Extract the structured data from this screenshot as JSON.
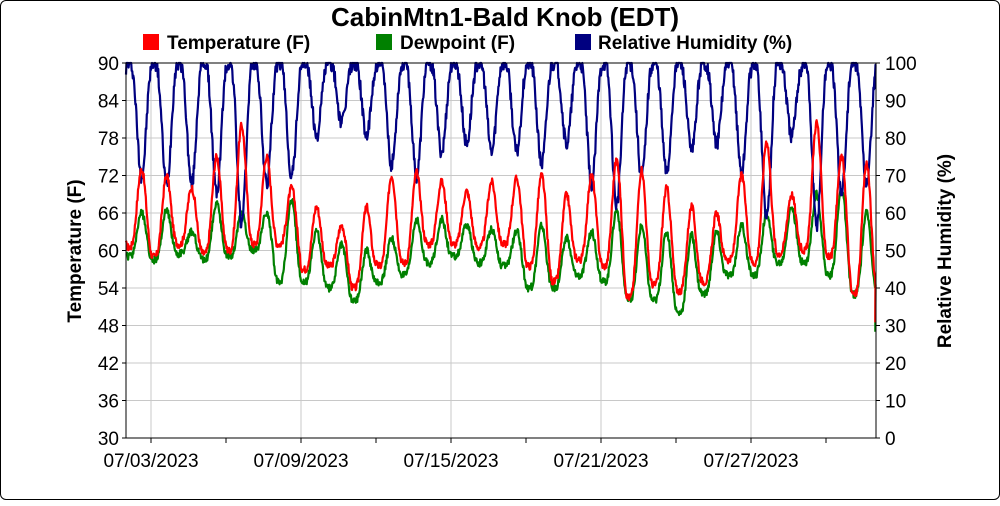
{
  "chart_data": {
    "type": "line",
    "title": "CabinMtn1-Bald Knob (EDT)",
    "ylabel_left": "Temperature (F)",
    "ylabel_right": "Relative Humidity (%)",
    "ylim_left": [
      30,
      90
    ],
    "ylim_right": [
      0,
      100
    ],
    "yticks_left": [
      "90",
      "84",
      "78",
      "72",
      "66",
      "60",
      "54",
      "48",
      "42",
      "36",
      "30"
    ],
    "yticks_right": [
      "100",
      "90",
      "80",
      "70",
      "60",
      "50",
      "40",
      "30",
      "20",
      "10",
      "0"
    ],
    "xtick_labels": [
      "07/03/2023",
      "07/09/2023",
      "07/15/2023",
      "07/21/2023",
      "07/27/2023"
    ],
    "x_range": [
      "2023-07-02",
      "2023-08-01"
    ],
    "grid": true,
    "legend_position": "top",
    "series": [
      {
        "name": "Temperature (F)",
        "axis": "left",
        "color": "#ff0000",
        "daily_min": [
          60.5,
          59.0,
          61.0,
          59.5,
          60.0,
          61.0,
          61.0,
          57.0,
          57.5,
          54.0,
          57.5,
          58.0,
          61.0,
          61.0,
          60.5,
          61.0,
          57.5,
          55.0,
          58.5,
          57.5,
          52.5,
          54.5,
          53.5,
          55.0,
          58.5,
          58.0,
          59.5,
          60.0,
          59.0,
          53.0
        ],
        "daily_max": [
          73.0,
          72.0,
          70.0,
          75.0,
          80.0,
          75.0,
          70.0,
          67.0,
          64.0,
          67.0,
          72.0,
          72.5,
          71.0,
          69.5,
          71.0,
          71.5,
          72.0,
          69.0,
          72.0,
          74.5,
          73.0,
          70.0,
          67.0,
          66.0,
          72.0,
          77.5,
          69.0,
          80.5,
          75.0,
          74.0
        ]
      },
      {
        "name": "Dewpoint (F)",
        "axis": "left",
        "color": "#008000",
        "daily_min": [
          59.0,
          58.5,
          59.5,
          58.5,
          59.0,
          60.0,
          55.0,
          55.0,
          54.0,
          52.0,
          55.0,
          56.0,
          58.0,
          59.0,
          58.0,
          57.5,
          54.0,
          54.0,
          56.0,
          55.0,
          52.0,
          52.0,
          50.0,
          53.0,
          56.0,
          56.0,
          58.0,
          58.0,
          56.0,
          53.0
        ],
        "daily_max": [
          66.0,
          66.5,
          63.0,
          67.5,
          66.0,
          66.0,
          68.0,
          63.0,
          61.0,
          60.0,
          62.0,
          65.0,
          65.0,
          64.0,
          63.5,
          63.0,
          64.0,
          62.0,
          63.0,
          66.5,
          64.0,
          63.0,
          62.5,
          63.0,
          64.0,
          66.0,
          67.0,
          69.0,
          70.0,
          66.0
        ]
      },
      {
        "name": "Relative Humidity (%)",
        "axis": "right",
        "color": "#000080",
        "daily_min": [
          72,
          70,
          70,
          68,
          60,
          70,
          72,
          82,
          85,
          82,
          75,
          72,
          78,
          80,
          78,
          78,
          75,
          80,
          70,
          65,
          72,
          73,
          78,
          80,
          73,
          62,
          82,
          60,
          68,
          70
        ],
        "daily_max": [
          100,
          100,
          100,
          100,
          100,
          100,
          100,
          100,
          100,
          100,
          100,
          100,
          100,
          100,
          100,
          100,
          100,
          100,
          100,
          100,
          100,
          100,
          100,
          100,
          100,
          100,
          100,
          100,
          100,
          100
        ]
      }
    ],
    "end_values": {
      "Temperature (F)": 48.5,
      "Dewpoint (F)": 47.0,
      "Relative Humidity (%)": 93
    }
  }
}
